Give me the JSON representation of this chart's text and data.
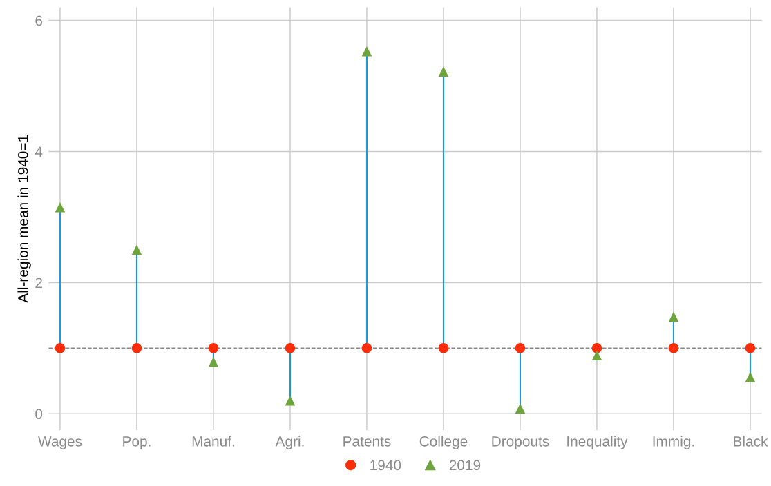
{
  "chart_data": {
    "type": "lollipop",
    "ylabel": "All-region mean in 1940=1",
    "categories": [
      "Wages",
      "Pop.",
      "Manuf.",
      "Agri.",
      "Patents",
      "College",
      "Dropouts",
      "Inequality",
      "Immig.",
      "Black"
    ],
    "series": [
      {
        "name": "1940",
        "color": "#fa2d0a",
        "marker": "circle",
        "values": [
          1,
          1,
          1,
          1,
          1,
          1,
          1,
          1,
          1,
          1
        ]
      },
      {
        "name": "2019",
        "color": "#6ea43c",
        "marker": "triangle",
        "values": [
          3.15,
          2.5,
          0.79,
          0.2,
          5.53,
          5.22,
          0.08,
          0.89,
          1.48,
          0.56
        ]
      }
    ],
    "color": "#1a9ad6",
    "ref_lines": [
      {
        "axis": "y",
        "value": 1,
        "color": "#888888",
        "line_style": "dashed"
      }
    ],
    "ylim": [
      -0.25,
      6.2
    ],
    "yticks": [
      0,
      2,
      4,
      6
    ],
    "grid": true,
    "legend": "bottom"
  }
}
